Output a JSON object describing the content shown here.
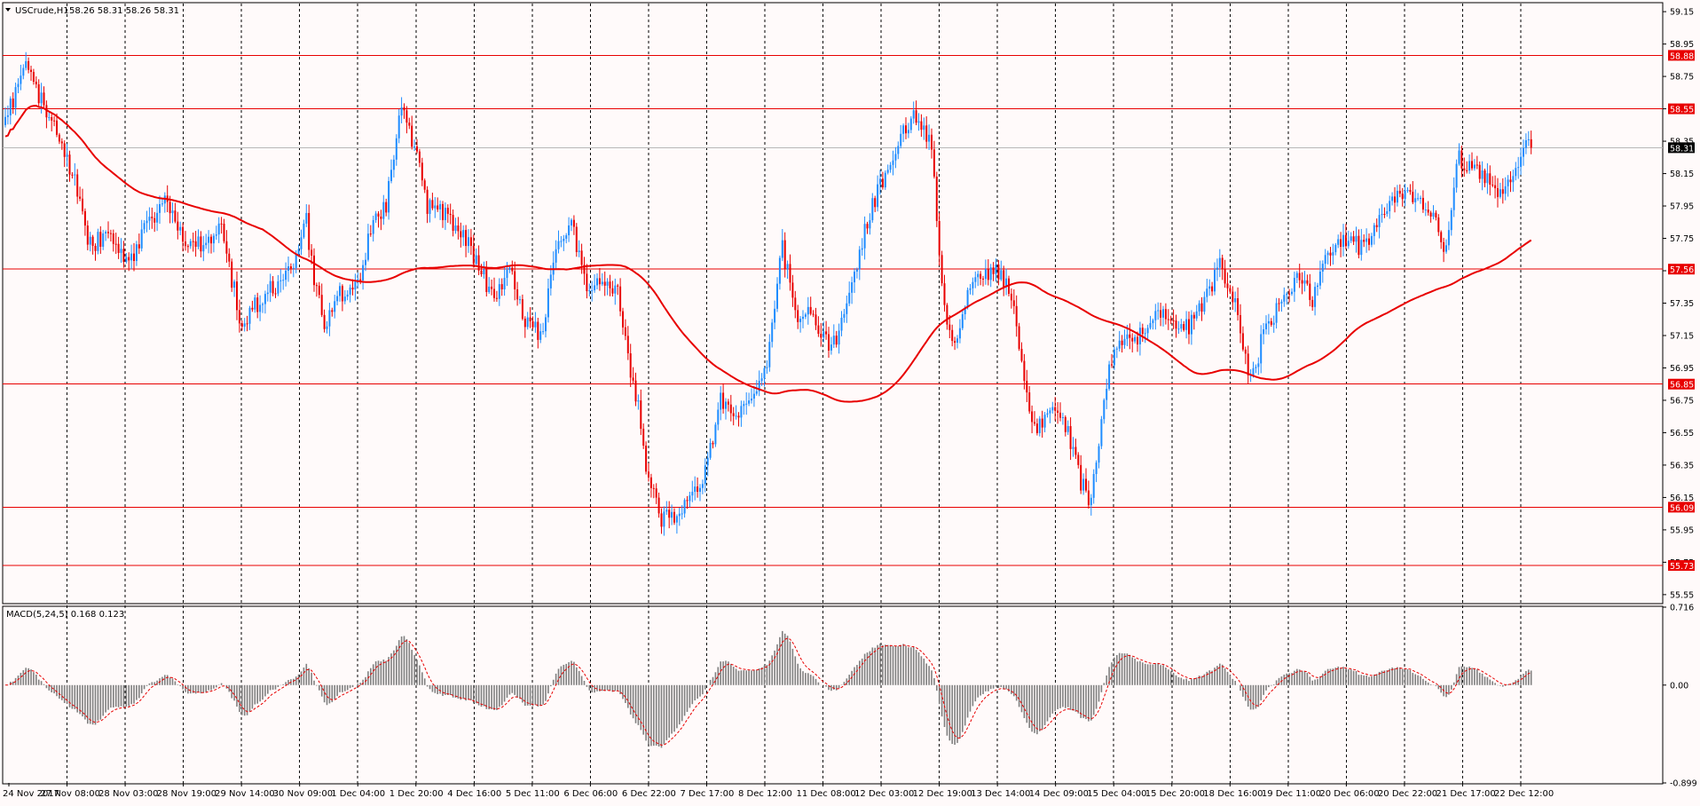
{
  "chart_data": [
    {
      "type": "candlestick",
      "symbol_label": "USCrude,H1",
      "ohlc_readout": "58.26 58.31 58.26 58.31",
      "ylim": [
        55.5,
        59.2
      ],
      "price_ticks": [
        "59.15",
        "58.95",
        "58.75",
        "58.55",
        "58.35",
        "58.15",
        "57.95",
        "57.75",
        "57.55",
        "57.35",
        "57.15",
        "56.95",
        "56.75",
        "56.55",
        "56.35",
        "56.15",
        "55.95",
        "55.75",
        "55.55"
      ],
      "current_price": {
        "label": "58.31",
        "value": 58.31
      },
      "horizontal_levels": [
        {
          "label": "58.88",
          "value": 58.88
        },
        {
          "label": "58.55",
          "value": 58.55
        },
        {
          "label": "57.56",
          "value": 57.56
        },
        {
          "label": "56.85",
          "value": 56.85
        },
        {
          "label": "56.09",
          "value": 56.09
        },
        {
          "label": "55.73",
          "value": 55.73
        }
      ],
      "time_labels": [
        "24 Nov 2017",
        "27 Nov 08:00",
        "28 Nov 03:00",
        "28 Nov 19:00",
        "29 Nov 14:00",
        "30 Nov 09:00",
        "1 Dec 04:00",
        "1 Dec 20:00",
        "4 Dec 16:00",
        "5 Dec 11:00",
        "6 Dec 06:00",
        "6 Dec 22:00",
        "7 Dec 17:00",
        "8 Dec 12:00",
        "11 Dec 08:00",
        "12 Dec 03:00",
        "12 Dec 19:00",
        "13 Dec 14:00",
        "14 Dec 09:00",
        "15 Dec 04:00",
        "15 Dec 20:00",
        "18 Dec 16:00",
        "19 Dec 11:00",
        "20 Dec 06:00",
        "20 Dec 22:00",
        "21 Dec 17:00",
        "22 Dec 12:00"
      ],
      "price_path": [
        [
          0,
          58.5
        ],
        [
          8,
          58.8
        ],
        [
          14,
          58.6
        ],
        [
          20,
          58.45
        ],
        [
          27,
          58.1
        ],
        [
          32,
          57.7
        ],
        [
          40,
          57.78
        ],
        [
          48,
          57.58
        ],
        [
          55,
          57.82
        ],
        [
          62,
          58.0
        ],
        [
          70,
          57.7
        ],
        [
          78,
          57.72
        ],
        [
          84,
          57.8
        ],
        [
          88,
          57.5
        ],
        [
          92,
          57.2
        ],
        [
          98,
          57.35
        ],
        [
          104,
          57.45
        ],
        [
          112,
          57.6
        ],
        [
          117,
          57.85
        ],
        [
          120,
          57.5
        ],
        [
          124,
          57.2
        ],
        [
          130,
          57.4
        ],
        [
          138,
          57.55
        ],
        [
          142,
          57.8
        ],
        [
          148,
          57.95
        ],
        [
          154,
          58.55
        ],
        [
          159,
          58.3
        ],
        [
          164,
          57.95
        ],
        [
          172,
          57.9
        ],
        [
          178,
          57.75
        ],
        [
          184,
          57.6
        ],
        [
          190,
          57.35
        ],
        [
          196,
          57.55
        ],
        [
          202,
          57.25
        ],
        [
          208,
          57.15
        ],
        [
          214,
          57.65
        ],
        [
          220,
          57.85
        ],
        [
          226,
          57.45
        ],
        [
          232,
          57.45
        ],
        [
          238,
          57.4
        ],
        [
          242,
          57.0
        ],
        [
          246,
          56.7
        ],
        [
          250,
          56.25
        ],
        [
          255,
          56.0
        ],
        [
          260,
          56.05
        ],
        [
          266,
          56.15
        ],
        [
          272,
          56.3
        ],
        [
          278,
          56.75
        ],
        [
          284,
          56.65
        ],
        [
          290,
          56.75
        ],
        [
          296,
          57.0
        ],
        [
          302,
          57.7
        ],
        [
          308,
          57.2
        ],
        [
          312,
          57.3
        ],
        [
          316,
          57.15
        ],
        [
          322,
          57.1
        ],
        [
          328,
          57.4
        ],
        [
          334,
          57.8
        ],
        [
          338,
          58.0
        ],
        [
          344,
          58.2
        ],
        [
          348,
          58.4
        ],
        [
          352,
          58.5
        ],
        [
          356,
          58.45
        ],
        [
          360,
          58.3
        ],
        [
          362,
          57.85
        ],
        [
          366,
          57.2
        ],
        [
          370,
          57.15
        ],
        [
          374,
          57.45
        ],
        [
          380,
          57.55
        ],
        [
          386,
          57.55
        ],
        [
          392,
          57.35
        ],
        [
          396,
          56.9
        ],
        [
          400,
          56.55
        ],
        [
          406,
          56.7
        ],
        [
          412,
          56.6
        ],
        [
          418,
          56.25
        ],
        [
          422,
          56.1
        ],
        [
          426,
          56.65
        ],
        [
          430,
          57.0
        ],
        [
          436,
          57.15
        ],
        [
          442,
          57.15
        ],
        [
          448,
          57.3
        ],
        [
          454,
          57.25
        ],
        [
          460,
          57.2
        ],
        [
          466,
          57.35
        ],
        [
          472,
          57.6
        ],
        [
          476,
          57.45
        ],
        [
          480,
          57.2
        ],
        [
          484,
          56.85
        ],
        [
          488,
          57.1
        ],
        [
          492,
          57.25
        ],
        [
          498,
          57.45
        ],
        [
          504,
          57.5
        ],
        [
          508,
          57.35
        ],
        [
          514,
          57.65
        ],
        [
          520,
          57.75
        ],
        [
          526,
          57.7
        ],
        [
          532,
          57.8
        ],
        [
          538,
          58.0
        ],
        [
          544,
          58.05
        ],
        [
          550,
          58.0
        ],
        [
          556,
          57.85
        ],
        [
          560,
          57.65
        ],
        [
          564,
          58.25
        ],
        [
          568,
          58.2
        ],
        [
          574,
          58.15
        ],
        [
          580,
          58.0
        ],
        [
          586,
          58.15
        ],
        [
          590,
          58.35
        ],
        [
          593,
          58.31
        ]
      ],
      "indicator_label": "MACD(5,24,5) 0.168 0.123",
      "indicator_ylim": [
        -0.899,
        0.716
      ],
      "indicator_ticks": [
        "0.716",
        "0.00",
        "-0.899"
      ],
      "colors": {
        "bull": "#1e8cff",
        "bear": "#e80000",
        "level_line": "#e80000",
        "ma_line": "#e80000",
        "histogram": "#808080",
        "signal_line": "#e80000",
        "grid": "#000000",
        "background": "#fffafa"
      }
    }
  ]
}
